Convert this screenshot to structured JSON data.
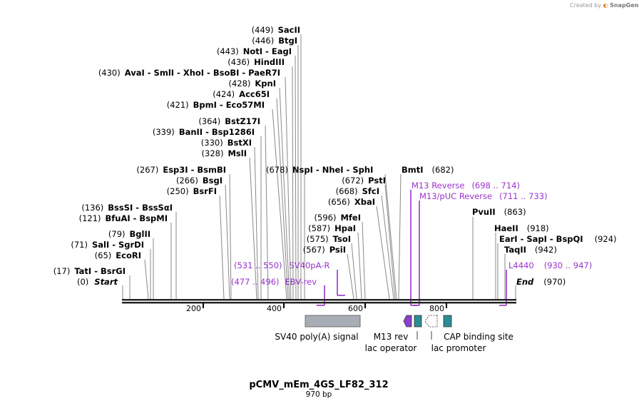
{
  "credit": {
    "text": "Created by",
    "brand": "SnapGene"
  },
  "title": "pCMV_mEm_4GS_LF82_312",
  "subtitle": "970 bp",
  "ticks": [
    "200",
    "400",
    "600",
    "800"
  ],
  "enzymes": [
    {
      "pos": "(449)",
      "name": "SacII"
    },
    {
      "pos": "(446)",
      "name": "BtgI"
    },
    {
      "pos": "(443)",
      "name": "NotI  -  EagI"
    },
    {
      "pos": "(436)",
      "name": "HindIII"
    },
    {
      "pos": "(430)",
      "name": "AvaI  -  SmlI  -  XhoI  -  BsoBI  -  PaeR7I"
    },
    {
      "pos": "(428)",
      "name": "KpnI"
    },
    {
      "pos": "(424)",
      "name": "Acc65I"
    },
    {
      "pos": "(421)",
      "name": "BpmI  -  Eco57MI"
    },
    {
      "pos": "(364)",
      "name": "BstZ17I"
    },
    {
      "pos": "(339)",
      "name": "BanII  -  Bsp1286I"
    },
    {
      "pos": "(330)",
      "name": "BstXI"
    },
    {
      "pos": "(328)",
      "name": "MslI"
    },
    {
      "pos": "(267)",
      "name": "Esp3I  -  BsmBI"
    },
    {
      "pos": "(266)",
      "name": "BsgI"
    },
    {
      "pos": "(250)",
      "name": "BsrFI"
    },
    {
      "pos": "(136)",
      "name": "BssSI  -  BssSαI"
    },
    {
      "pos": "(121)",
      "name": "BfuAI  -  BspMI"
    },
    {
      "pos": "(79)",
      "name": "BglII"
    },
    {
      "pos": "(71)",
      "name": "SalI  -  SgrDI"
    },
    {
      "pos": "(65)",
      "name": "EcoRI"
    },
    {
      "pos": "(17)",
      "name": "TatI  -  BsrGI"
    },
    {
      "pos": "(0)",
      "name": "Start"
    },
    {
      "pos": "(678)",
      "name": "NspI  -  NheI  -  SphI"
    },
    {
      "pos": "(682)",
      "name": "BmtI"
    },
    {
      "pos": "(672)",
      "name": "PstI"
    },
    {
      "pos": "(668)",
      "name": "SfcI"
    },
    {
      "pos": "(656)",
      "name": "XbaI"
    },
    {
      "pos": "(596)",
      "name": "MfeI"
    },
    {
      "pos": "(587)",
      "name": "HpaI"
    },
    {
      "pos": "(575)",
      "name": "TsoI"
    },
    {
      "pos": "(567)",
      "name": "PsiI"
    },
    {
      "pos": "(863)",
      "name": "PvuII"
    },
    {
      "pos": "(918)",
      "name": "HaeII"
    },
    {
      "pos": "(924)",
      "name": "EarI  -  SapI  -  BspQI"
    },
    {
      "pos": "(942)",
      "name": "TaqII"
    },
    {
      "pos": "(970)",
      "name": "End"
    }
  ],
  "primers": [
    {
      "name": "M13 Reverse",
      "range": "(698 .. 714)"
    },
    {
      "name": "M13/pUC Reverse",
      "range": "(711 .. 733)"
    },
    {
      "name": "SV40pA-R",
      "range": "(531 .. 550)"
    },
    {
      "name": "EBV-rev",
      "range": "(477 .. 496)"
    },
    {
      "name": "L4440",
      "range": "(930 .. 947)"
    }
  ],
  "features": [
    {
      "label": "SV40 poly(A) signal"
    },
    {
      "label": "M13 rev"
    },
    {
      "label": "lac operator"
    },
    {
      "label": "lac promoter"
    },
    {
      "label": "CAP binding site"
    }
  ],
  "colors": {
    "primer": "#9933cc",
    "polyA": "#a8adb5",
    "operator": "#2b8c96",
    "m13rev": "#8a3fd0",
    "promoter": "#ffffff",
    "cap": "#2b8c96"
  }
}
